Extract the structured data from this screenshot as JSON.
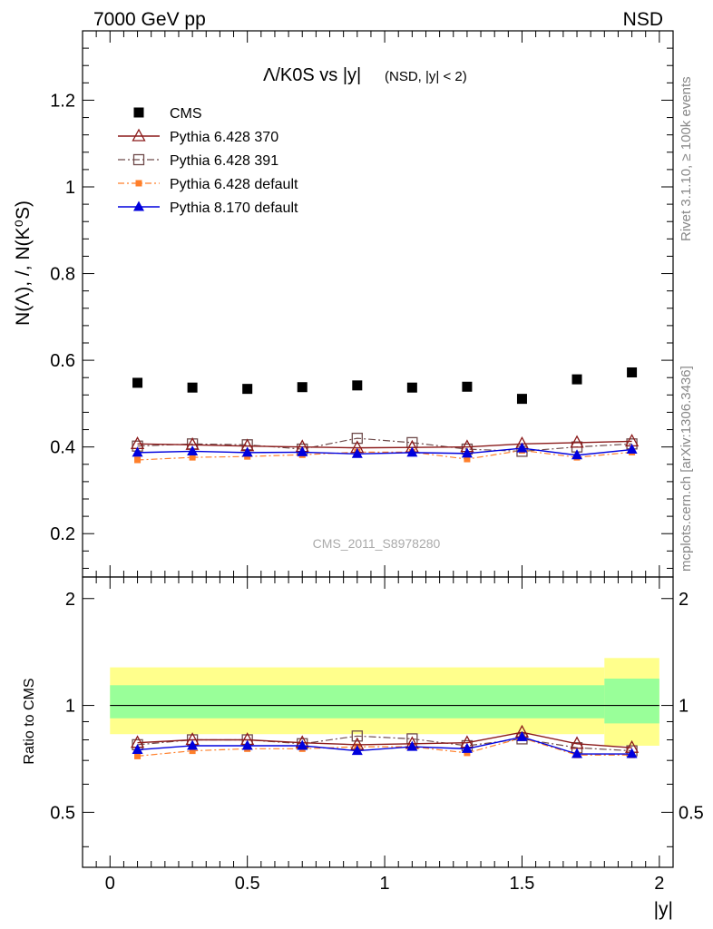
{
  "header": {
    "energy_label": "7000 GeV pp",
    "process_label": "NSD"
  },
  "side": {
    "rivet_label": "Rivet 3.1.10, ≥ 100k events",
    "mcplots_label": "mcplots.cern.ch [arXiv:1306.3436]"
  },
  "watermark": "CMS_2011_S8978280",
  "colors": {
    "cms": "#000000",
    "p6_370": "#8b1a1a",
    "p6_391": "#6e4a4a",
    "p6_def": "#ff7f2a",
    "p8_def": "#0000dd",
    "band_outer": "#ffff8c",
    "band_inner": "#99ff99"
  },
  "chart_data": [
    {
      "type": "scatter",
      "title_main": "Λ/K0S vs |y|",
      "title_sub": "(NSD, |y| < 2)",
      "ylabel": "N(Λ), /, N(K⁰S)",
      "xlim": [
        -0.1,
        2.05
      ],
      "ylim": [
        0.1,
        1.36
      ],
      "yticks": [
        "0.2",
        "0.4",
        "0.6",
        "0.8",
        "1",
        "1.2"
      ],
      "x": [
        0.1,
        0.3,
        0.5,
        0.7,
        0.9,
        1.1,
        1.3,
        1.5,
        1.7,
        1.9
      ],
      "series": [
        {
          "name": "CMS",
          "marker": "square",
          "values": [
            0.548,
            0.537,
            0.534,
            0.538,
            0.542,
            0.537,
            0.539,
            0.511,
            0.556,
            0.572
          ]
        },
        {
          "name": "Pythia 6.428 370",
          "marker": "triangle-open",
          "values": [
            0.407,
            0.405,
            0.402,
            0.4,
            0.398,
            0.399,
            0.4,
            0.407,
            0.41,
            0.413
          ]
        },
        {
          "name": "Pythia 6.428 391",
          "marker": "square-open",
          "values": [
            0.402,
            0.407,
            0.405,
            0.395,
            0.42,
            0.41,
            0.395,
            0.39,
            0.4,
            0.407
          ]
        },
        {
          "name": "Pythia 6.428 default",
          "marker": "square-small",
          "values": [
            0.37,
            0.376,
            0.378,
            0.382,
            0.388,
            0.388,
            0.372,
            0.392,
            0.376,
            0.388
          ]
        },
        {
          "name": "Pythia 8.170 default",
          "marker": "triangle",
          "values": [
            0.387,
            0.39,
            0.387,
            0.388,
            0.384,
            0.387,
            0.385,
            0.397,
            0.381,
            0.394
          ]
        }
      ]
    },
    {
      "type": "line",
      "ylabel": "Ratio to CMS",
      "xlabel": "|y|",
      "xlim": [
        -0.1,
        2.05
      ],
      "ylim": [
        0.35,
        2.3
      ],
      "yticks": [
        "0.5",
        "1",
        "2"
      ],
      "xticks": [
        "0",
        "0.5",
        "1",
        "1.5",
        "2"
      ],
      "band_edges": [
        0.0,
        1.8,
        2.0
      ],
      "band_outer": [
        [
          0.83,
          1.28
        ],
        [
          0.77,
          1.36
        ]
      ],
      "band_inner": [
        [
          0.92,
          1.14
        ],
        [
          0.89,
          1.19
        ]
      ],
      "x": [
        0.1,
        0.3,
        0.5,
        0.7,
        0.9,
        1.1,
        1.3,
        1.5,
        1.7,
        1.9
      ],
      "series": [
        {
          "name": "Pythia 6.428 370",
          "values": [
            0.785,
            0.8,
            0.8,
            0.785,
            0.775,
            0.78,
            0.785,
            0.84,
            0.78,
            0.76
          ]
        },
        {
          "name": "Pythia 6.428 391",
          "values": [
            0.775,
            0.8,
            0.8,
            0.78,
            0.82,
            0.805,
            0.77,
            0.805,
            0.76,
            0.745
          ]
        },
        {
          "name": "Pythia 6.428 default",
          "values": [
            0.72,
            0.745,
            0.755,
            0.755,
            0.765,
            0.765,
            0.735,
            0.81,
            0.725,
            0.725
          ]
        },
        {
          "name": "Pythia 8.170 default",
          "values": [
            0.75,
            0.77,
            0.77,
            0.77,
            0.745,
            0.765,
            0.755,
            0.815,
            0.73,
            0.73
          ]
        }
      ]
    }
  ]
}
